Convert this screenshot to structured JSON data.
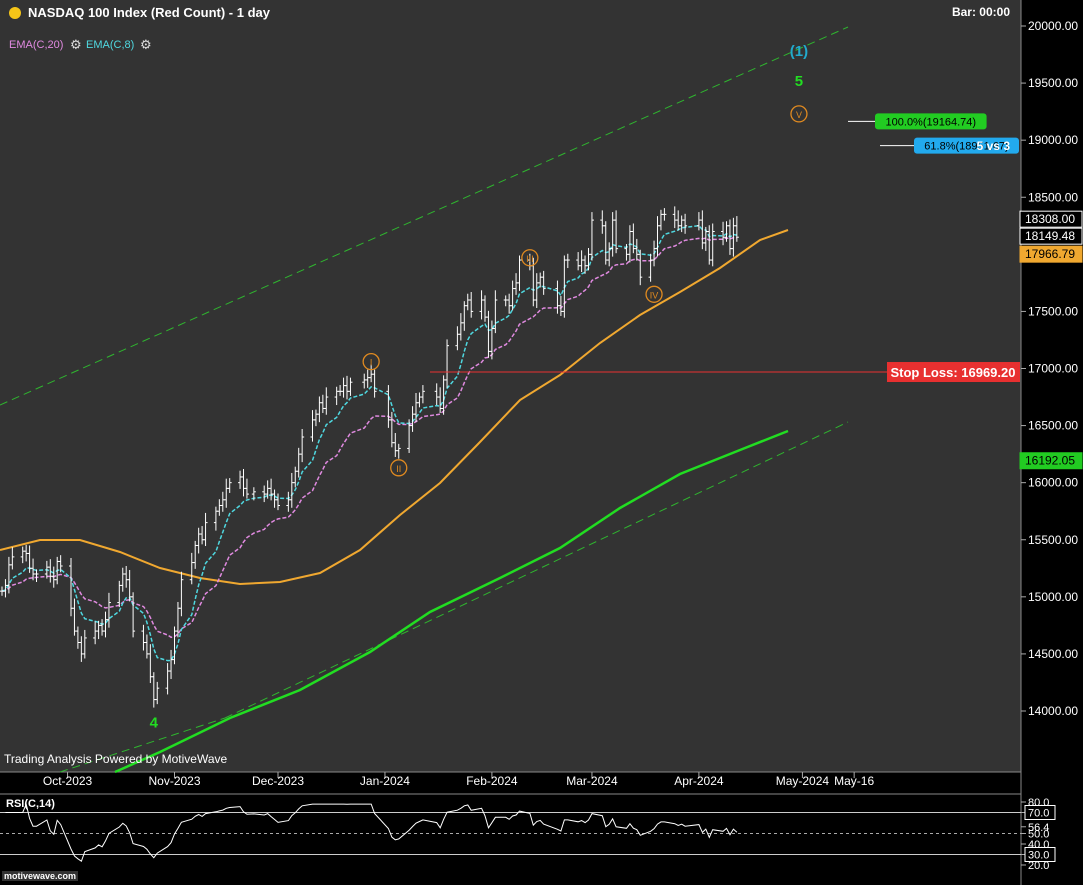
{
  "header": {
    "title": "NASDAQ 100 Index (Red Count) - 1 day",
    "bar_label": "Bar: 00:00",
    "status_dot_color": "#f5c518"
  },
  "studies": [
    {
      "label": "EMA(C,20)",
      "color": "#e08ae0"
    },
    {
      "label": "EMA(C,8)",
      "color": "#4fd8e0"
    }
  ],
  "credit": "Trading Analysis Powered by MotiveWave",
  "logo": "motivewave.com",
  "rsi": {
    "title": "RSI(C,14)",
    "axis_labels": [
      "80.0",
      "70.0",
      "56.4",
      "50.0",
      "40.0",
      "30.0",
      "20.0"
    ]
  },
  "chart_data": {
    "type": "candlestick",
    "title": "NASDAQ 100 Index (Red Count) - 1 day",
    "x_tick_labels": [
      "Oct-2023",
      "Nov-2023",
      "Dec-2023",
      "Jan-2024",
      "Feb-2024",
      "Mar-2024",
      "Apr-2024",
      "May-2024",
      "May-16"
    ],
    "y_tick_labels": [
      "14000.00",
      "14500.00",
      "15000.00",
      "15500.00",
      "16000.00",
      "16500.00",
      "17000.00",
      "17500.00",
      "18000.00",
      "18500.00",
      "19000.00",
      "19500.00",
      "20000.00"
    ],
    "ylim": [
      13600,
      20200
    ],
    "price_labels": [
      {
        "text": "18308.00",
        "value": 18308,
        "bg": "#000000",
        "fg": "#ffffff",
        "border": "#ffffff"
      },
      {
        "text": "18149.48",
        "value": 18149.48,
        "bg": "#000000",
        "fg": "#ffffff",
        "border": "#ffffff"
      },
      {
        "text": "17966.79",
        "value": 17966.79,
        "bg": "#f0a830",
        "fg": "#000000",
        "border": "#f0a830"
      },
      {
        "text": "16192.05",
        "value": 16192.05,
        "bg": "#22cc22",
        "fg": "#000000",
        "border": "#22cc22"
      }
    ],
    "stop_loss": {
      "label": "Stop Loss: ",
      "value_text": "16969.20",
      "value": 16969.2,
      "color": "#e83030"
    },
    "fib_targets": [
      {
        "text": "100.0%(19164.74)",
        "value": 19164.74,
        "color": "#22cc22"
      },
      {
        "text": "61.8%(18951.67)",
        "value": 18951.67,
        "color": "#22aaee"
      }
    ],
    "note": "5 vs 3",
    "wave_labels": [
      {
        "text": "4",
        "date": "2023-10-26",
        "price": 13900,
        "color": "#22dd22",
        "style": "plain"
      },
      {
        "text": "(1)",
        "date": "2024-04-30",
        "price": 19780,
        "color": "#22aacc",
        "style": "plain"
      },
      {
        "text": "5",
        "date": "2024-04-30",
        "price": 19520,
        "color": "#22dd22",
        "style": "plain"
      },
      {
        "text": "I",
        "date": "2023-12-28",
        "price": 17060,
        "color": "#e08a20",
        "style": "circle"
      },
      {
        "text": "II",
        "date": "2024-01-05",
        "price": 16130,
        "color": "#e08a20",
        "style": "circle"
      },
      {
        "text": "III",
        "date": "2024-02-12",
        "price": 17970,
        "color": "#e08a20",
        "style": "circle"
      },
      {
        "text": "IV",
        "date": "2024-03-19",
        "price": 17650,
        "color": "#e08a20",
        "style": "circle"
      },
      {
        "text": "V",
        "date": "2024-04-30",
        "price": 19230,
        "color": "#e08a20",
        "style": "circle"
      }
    ],
    "series": [
      {
        "name": "EMA(C,20)",
        "color": "#e08ae0"
      },
      {
        "name": "EMA(C,8)",
        "color": "#4fd8e0"
      }
    ],
    "ohlc_closes": [
      {
        "date": "2023-09-12",
        "close": 15050
      },
      {
        "date": "2023-09-13",
        "close": 15100
      },
      {
        "date": "2023-09-14",
        "close": 15280
      },
      {
        "date": "2023-09-15",
        "close": 15350
      },
      {
        "date": "2023-09-18",
        "close": 15400
      },
      {
        "date": "2023-09-19",
        "close": 15380
      },
      {
        "date": "2023-09-20",
        "close": 15250
      },
      {
        "date": "2023-09-21",
        "close": 15200
      },
      {
        "date": "2023-09-22",
        "close": 15200
      },
      {
        "date": "2023-09-25",
        "close": 15260
      },
      {
        "date": "2023-09-26",
        "close": 15180
      },
      {
        "date": "2023-09-27",
        "close": 15150
      },
      {
        "date": "2023-09-28",
        "close": 15310
      },
      {
        "date": "2023-09-29",
        "close": 15270
      },
      {
        "date": "2023-10-02",
        "close": 14900
      },
      {
        "date": "2023-10-03",
        "close": 14700
      },
      {
        "date": "2023-10-04",
        "close": 14600
      },
      {
        "date": "2023-10-05",
        "close": 14500
      },
      {
        "date": "2023-10-06",
        "close": 14640
      },
      {
        "date": "2023-10-09",
        "close": 14700
      },
      {
        "date": "2023-10-10",
        "close": 14750
      },
      {
        "date": "2023-10-11",
        "close": 14700
      },
      {
        "date": "2023-10-12",
        "close": 14800
      },
      {
        "date": "2023-10-13",
        "close": 14950
      },
      {
        "date": "2023-10-16",
        "close": 15100
      },
      {
        "date": "2023-10-17",
        "close": 15200
      },
      {
        "date": "2023-10-18",
        "close": 15150
      },
      {
        "date": "2023-10-19",
        "close": 15000
      },
      {
        "date": "2023-10-20",
        "close": 14700
      },
      {
        "date": "2023-10-23",
        "close": 14600
      },
      {
        "date": "2023-10-24",
        "close": 14500
      },
      {
        "date": "2023-10-25",
        "close": 14300
      },
      {
        "date": "2023-10-26",
        "close": 14100
      },
      {
        "date": "2023-10-27",
        "close": 14200
      },
      {
        "date": "2023-10-30",
        "close": 14350
      },
      {
        "date": "2023-10-31",
        "close": 14450
      },
      {
        "date": "2023-11-01",
        "close": 14700
      },
      {
        "date": "2023-11-02",
        "close": 14900
      },
      {
        "date": "2023-11-03",
        "close": 15150
      },
      {
        "date": "2023-11-06",
        "close": 15300
      },
      {
        "date": "2023-11-07",
        "close": 15450
      },
      {
        "date": "2023-11-08",
        "close": 15550
      },
      {
        "date": "2023-11-09",
        "close": 15500
      },
      {
        "date": "2023-11-10",
        "close": 15650
      },
      {
        "date": "2023-11-13",
        "close": 15750
      },
      {
        "date": "2023-11-14",
        "close": 15800
      },
      {
        "date": "2023-11-15",
        "close": 15850
      },
      {
        "date": "2023-11-16",
        "close": 15950
      },
      {
        "date": "2023-11-17",
        "close": 16000
      },
      {
        "date": "2023-11-20",
        "close": 16050
      },
      {
        "date": "2023-11-21",
        "close": 15950
      },
      {
        "date": "2023-11-22",
        "close": 15900
      },
      {
        "date": "2023-11-24",
        "close": 15920
      },
      {
        "date": "2023-11-27",
        "close": 15900
      },
      {
        "date": "2023-11-28",
        "close": 15950
      },
      {
        "date": "2023-11-29",
        "close": 15900
      },
      {
        "date": "2023-11-30",
        "close": 15850
      },
      {
        "date": "2023-12-01",
        "close": 15800
      },
      {
        "date": "2023-12-04",
        "close": 15850
      },
      {
        "date": "2023-12-05",
        "close": 16000
      },
      {
        "date": "2023-12-06",
        "close": 16100
      },
      {
        "date": "2023-12-07",
        "close": 16250
      },
      {
        "date": "2023-12-08",
        "close": 16400
      },
      {
        "date": "2023-12-11",
        "close": 16550
      },
      {
        "date": "2023-12-12",
        "close": 16600
      },
      {
        "date": "2023-12-13",
        "close": 16700
      },
      {
        "date": "2023-12-14",
        "close": 16650
      },
      {
        "date": "2023-12-15",
        "close": 16750
      },
      {
        "date": "2023-12-18",
        "close": 16800
      },
      {
        "date": "2023-12-19",
        "close": 16800
      },
      {
        "date": "2023-12-20",
        "close": 16850
      },
      {
        "date": "2023-12-21",
        "close": 16800
      },
      {
        "date": "2023-12-22",
        "close": 16880
      },
      {
        "date": "2023-12-26",
        "close": 16900
      },
      {
        "date": "2023-12-27",
        "close": 16920
      },
      {
        "date": "2023-12-28",
        "close": 16950
      },
      {
        "date": "2023-12-29",
        "close": 16800
      },
      {
        "date": "2024-01-02",
        "close": 16550
      },
      {
        "date": "2024-01-03",
        "close": 16350
      },
      {
        "date": "2024-01-04",
        "close": 16280
      },
      {
        "date": "2024-01-05",
        "close": 16300
      },
      {
        "date": "2024-01-08",
        "close": 16500
      },
      {
        "date": "2024-01-09",
        "close": 16600
      },
      {
        "date": "2024-01-10",
        "close": 16700
      },
      {
        "date": "2024-01-11",
        "close": 16750
      },
      {
        "date": "2024-01-12",
        "close": 16800
      },
      {
        "date": "2024-01-16",
        "close": 16750
      },
      {
        "date": "2024-01-17",
        "close": 16650
      },
      {
        "date": "2024-01-18",
        "close": 16900
      },
      {
        "date": "2024-01-19",
        "close": 17200
      },
      {
        "date": "2024-01-22",
        "close": 17300
      },
      {
        "date": "2024-01-23",
        "close": 17400
      },
      {
        "date": "2024-01-24",
        "close": 17550
      },
      {
        "date": "2024-01-25",
        "close": 17600
      },
      {
        "date": "2024-01-26",
        "close": 17500
      },
      {
        "date": "2024-01-29",
        "close": 17600
      },
      {
        "date": "2024-01-30",
        "close": 17450
      },
      {
        "date": "2024-01-31",
        "close": 17150
      },
      {
        "date": "2024-02-01",
        "close": 17350
      },
      {
        "date": "2024-02-02",
        "close": 17600
      },
      {
        "date": "2024-02-05",
        "close": 17600
      },
      {
        "date": "2024-02-06",
        "close": 17550
      },
      {
        "date": "2024-02-07",
        "close": 17700
      },
      {
        "date": "2024-02-08",
        "close": 17750
      },
      {
        "date": "2024-02-09",
        "close": 17950
      },
      {
        "date": "2024-02-12",
        "close": 17900
      },
      {
        "date": "2024-02-13",
        "close": 17600
      },
      {
        "date": "2024-02-14",
        "close": 17750
      },
      {
        "date": "2024-02-15",
        "close": 17800
      },
      {
        "date": "2024-02-16",
        "close": 17700
      },
      {
        "date": "2024-02-20",
        "close": 17550
      },
      {
        "date": "2024-02-21",
        "close": 17500
      },
      {
        "date": "2024-02-22",
        "close": 17950
      },
      {
        "date": "2024-02-23",
        "close": 17950
      },
      {
        "date": "2024-02-26",
        "close": 17900
      },
      {
        "date": "2024-02-27",
        "close": 17950
      },
      {
        "date": "2024-02-28",
        "close": 17900
      },
      {
        "date": "2024-02-29",
        "close": 18000
      },
      {
        "date": "2024-03-01",
        "close": 18300
      },
      {
        "date": "2024-03-04",
        "close": 18250
      },
      {
        "date": "2024-03-05",
        "close": 17950
      },
      {
        "date": "2024-03-06",
        "close": 18050
      },
      {
        "date": "2024-03-07",
        "close": 18300
      },
      {
        "date": "2024-03-08",
        "close": 18050
      },
      {
        "date": "2024-03-11",
        "close": 18000
      },
      {
        "date": "2024-03-12",
        "close": 18200
      },
      {
        "date": "2024-03-13",
        "close": 18050
      },
      {
        "date": "2024-03-14",
        "close": 18000
      },
      {
        "date": "2024-03-15",
        "close": 17800
      },
      {
        "date": "2024-03-18",
        "close": 17950
      },
      {
        "date": "2024-03-19",
        "close": 18050
      },
      {
        "date": "2024-03-20",
        "close": 18250
      },
      {
        "date": "2024-03-21",
        "close": 18350
      },
      {
        "date": "2024-03-22",
        "close": 18350
      },
      {
        "date": "2024-03-25",
        "close": 18300
      },
      {
        "date": "2024-03-26",
        "close": 18250
      },
      {
        "date": "2024-03-27",
        "close": 18300
      },
      {
        "date": "2024-03-28",
        "close": 18250
      },
      {
        "date": "2024-04-01",
        "close": 18300
      },
      {
        "date": "2024-04-02",
        "close": 18100
      },
      {
        "date": "2024-04-03",
        "close": 18200
      },
      {
        "date": "2024-04-04",
        "close": 17950
      },
      {
        "date": "2024-04-05",
        "close": 18200
      },
      {
        "date": "2024-04-08",
        "close": 18150
      },
      {
        "date": "2024-04-09",
        "close": 18250
      },
      {
        "date": "2024-04-10",
        "close": 18050
      },
      {
        "date": "2024-04-11",
        "close": 18250
      },
      {
        "date": "2024-04-12",
        "close": 18150
      }
    ]
  }
}
